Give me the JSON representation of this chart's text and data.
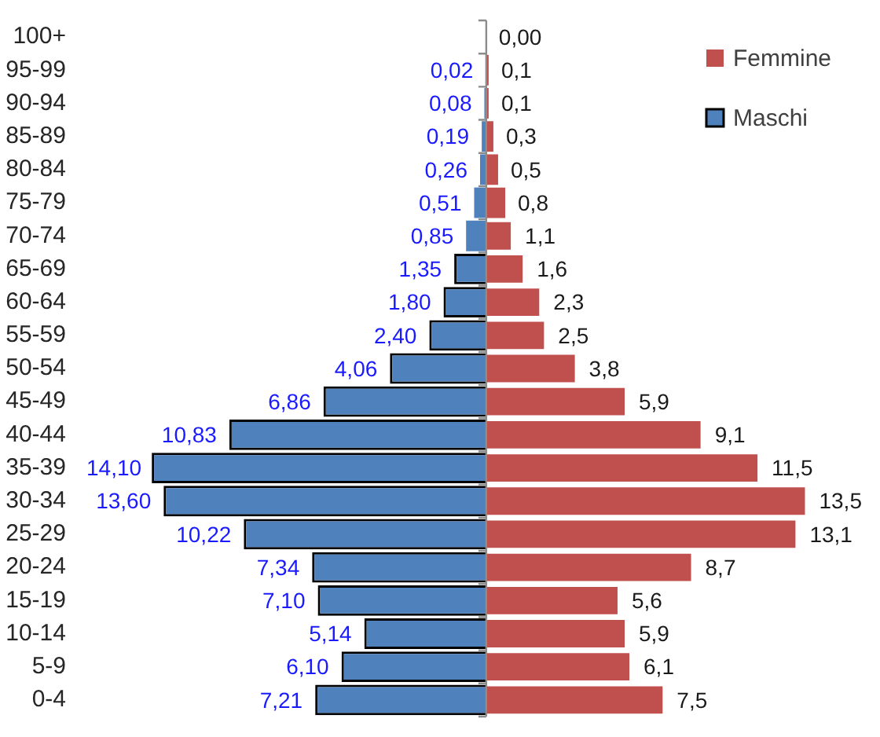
{
  "chart_data": {
    "type": "bar",
    "orientation": "horizontal",
    "stacked": true,
    "categories": [
      "100+",
      "95-99",
      "90-94",
      "85-89",
      "80-84",
      "75-79",
      "70-74",
      "65-69",
      "60-64",
      "55-59",
      "50-54",
      "45-49",
      "40-44",
      "35-39",
      "30-34",
      "25-29",
      "20-24",
      "15-19",
      "10-14",
      "5-9",
      "0-4"
    ],
    "series": [
      {
        "name": "Femmine",
        "color": "#c0504d",
        "values": [
          0,
          0.1,
          0.1,
          0.3,
          0.5,
          0.8,
          1.1,
          1.6,
          2.3,
          2.5,
          3.8,
          5.9,
          9.1,
          11.5,
          13.5,
          13.1,
          8.7,
          5.6,
          5.9,
          6.1,
          7.5
        ],
        "value_labels": [
          "0,00",
          "0,1",
          "0,1",
          "0,3",
          "0,5",
          "0,8",
          "1,1",
          "1,6",
          "2,3",
          "2,5",
          "3,8",
          "5,9",
          "9,1",
          "11,5",
          "13,5",
          "13,1",
          "8,7",
          "5,6",
          "5,9",
          "6,1",
          "7,5"
        ]
      },
      {
        "name": "Maschi",
        "color": "#4f81bd",
        "values": [
          null,
          -0.02,
          -0.08,
          -0.19,
          -0.26,
          -0.51,
          -0.85,
          -1.35,
          -1.8,
          -2.4,
          -4.06,
          -6.86,
          -10.83,
          -14.1,
          -13.6,
          -10.22,
          -7.34,
          -7.1,
          -5.14,
          -6.1,
          -7.21
        ]
      }
    ],
    "annotations": [
      {
        "text": "0,02",
        "x": -0.02,
        "y": "95-99"
      },
      {
        "text": "0,08",
        "x": -0.08,
        "y": "90-94"
      },
      {
        "text": "0,19",
        "x": -0.19,
        "y": "85-89"
      },
      {
        "text": "0,26",
        "x": -0.26,
        "y": "80-84"
      },
      {
        "text": "0,51",
        "x": -0.51,
        "y": "75-79"
      },
      {
        "text": "0,85",
        "x": -0.85,
        "y": "70-74"
      },
      {
        "text": "1,35",
        "x": -1.35,
        "y": "65-69"
      },
      {
        "text": "1,80",
        "x": -1.8,
        "y": "60-64"
      },
      {
        "text": "2,40",
        "x": -2.4,
        "y": "55-59"
      },
      {
        "text": "4,06",
        "x": -4.06,
        "y": "50-54"
      },
      {
        "text": "6,86",
        "x": -6.86,
        "y": "45-49"
      },
      {
        "text": "10,83",
        "x": -10.83,
        "y": "40-44"
      },
      {
        "text": "14,10",
        "x": -14.1,
        "y": "35-39"
      },
      {
        "text": "13,60",
        "x": -13.6,
        "y": "30-34"
      },
      {
        "text": "10,22",
        "x": -10.22,
        "y": "25-29"
      },
      {
        "text": "7,34",
        "x": -7.34,
        "y": "20-24"
      },
      {
        "text": "7,10",
        "x": -7.1,
        "y": "15-19"
      },
      {
        "text": "5,14",
        "x": -5.14,
        "y": "10-14"
      },
      {
        "text": "6,10",
        "x": -6.1,
        "y": "5-9"
      },
      {
        "text": "7,21",
        "x": -7.21,
        "y": "0-4"
      }
    ],
    "tick_labels": "y",
    "legend": "top right"
  }
}
